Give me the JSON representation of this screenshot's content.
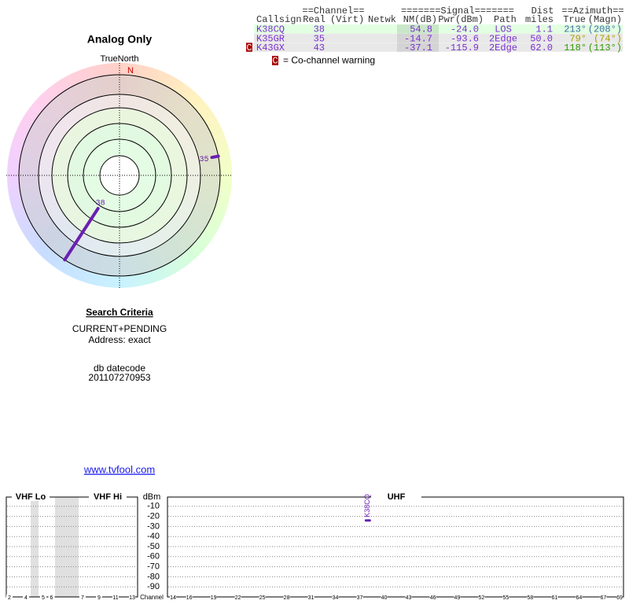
{
  "radar": {
    "title": "Analog Only",
    "north_label": "TrueNorth",
    "north_letter": "N",
    "line_color": "#6a1fb0"
  },
  "table": {
    "group_headers": [
      "==Channel==",
      "=======Signal=======",
      "Dist",
      "==Azimuth=="
    ],
    "headers": [
      "Callsign",
      "Real",
      "(Virt)",
      "Netwk",
      "NM(dB)",
      "Pwr(dBm)",
      "Path",
      "miles",
      "True",
      "(Magn)"
    ],
    "rows": [
      {
        "callsign": "K38CQ",
        "real": 38,
        "nm": 54.8,
        "pwr": {
          "value": -24,
          "label": "-24.0"
        },
        "path": "LOS",
        "dist": 1.1,
        "az_true": {
          "value": 213,
          "label": "213°"
        },
        "az_magn": {
          "value": 208,
          "label": "(208°)"
        },
        "az_color": "#3a6ea5",
        "bg": "#e2ffe2",
        "nm_bg": "#c9e6c9"
      },
      {
        "callsign": "K35GR",
        "real": 35,
        "nm": -14.7,
        "pwr": -93.6,
        "path": "2Edge",
        "dist": {
          "value": 50,
          "label": "50.0"
        },
        "az_true": {
          "value": 79,
          "label": "79°"
        },
        "az_magn": {
          "value": 74,
          "label": "(74°)"
        },
        "az_color": "#a8a000",
        "bg": "#e8e8e8",
        "nm_bg": "#d4d4d4"
      },
      {
        "warning": "C",
        "callsign": "K43GX",
        "real": 43,
        "nm": -37.1,
        "pwr": -115.9,
        "path": "2Edge",
        "dist": {
          "value": 62,
          "label": "62.0"
        },
        "az_true": {
          "value": 118,
          "label": "118°"
        },
        "az_magn": {
          "value": 113,
          "label": "(113°)"
        },
        "az_color": "#2f9a00",
        "bg": "#e8e8e8",
        "nm_bg": "#d4d4d4"
      }
    ]
  },
  "legend": {
    "flag": "C",
    "text": "= Co-channel warning"
  },
  "search": {
    "title": "Search Criteria",
    "lines": [
      "CURRENT+PENDING",
      "Address: exact"
    ],
    "datecode_label": "db datecode",
    "datecode": "201107270953"
  },
  "link": "www.tvfool.com",
  "spectrum": {
    "bands": [
      "VHF Lo",
      "VHF Hi",
      "UHF"
    ],
    "y_label": "dBm",
    "x_label": "Channel",
    "ylim": [
      -100,
      0
    ],
    "yticks": [
      -10,
      -20,
      -30,
      -40,
      -50,
      -60,
      -70,
      -80,
      -90
    ],
    "vhf_ticks": [
      2,
      4,
      5,
      6,
      7,
      9,
      11,
      13
    ],
    "uhf_ticks": [
      14,
      16,
      19,
      22,
      25,
      28,
      31,
      34,
      37,
      40,
      43,
      46,
      49,
      52,
      55,
      58,
      61,
      64,
      67,
      69
    ],
    "signals": [
      {
        "callsign": "K38CQ",
        "channel": 38,
        "dbm": -24
      }
    ],
    "color": "#6a1fb0"
  }
}
